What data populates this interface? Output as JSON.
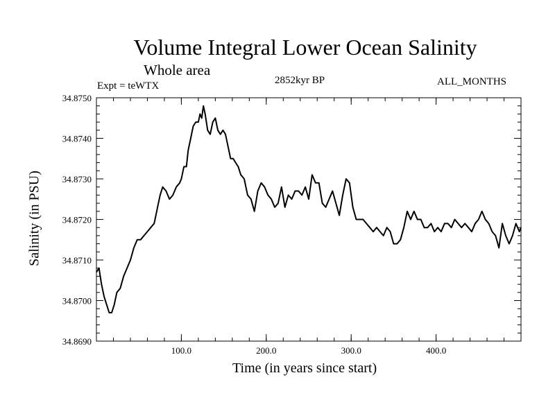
{
  "chart_data": {
    "type": "line",
    "title": "Volume Integral Lower Ocean Salinity",
    "subtitle": "Whole area",
    "left_label": "Expt = teWTX",
    "center_label": "2852kyr BP",
    "right_label": "ALL_MONTHS",
    "xlabel": "Time (in years since start)",
    "ylabel": "Salinity (in PSU)",
    "xlim": [
      0,
      500
    ],
    "ylim": [
      34.869,
      34.875
    ],
    "xticks": [
      100,
      200,
      300,
      400
    ],
    "xtick_labels": [
      "100.0",
      "200.0",
      "300.0",
      "400.0"
    ],
    "yticks": [
      34.869,
      34.87,
      34.871,
      34.872,
      34.873,
      34.874,
      34.875
    ],
    "ytick_labels": [
      "34.8690",
      "34.8700",
      "34.8710",
      "34.8720",
      "34.8730",
      "34.8740",
      "34.8750"
    ],
    "series": [
      {
        "name": "salinity",
        "color": "#000000",
        "x": [
          0,
          3,
          6,
          9,
          12,
          15,
          18,
          21,
          24,
          28,
          32,
          36,
          40,
          44,
          48,
          52,
          56,
          60,
          64,
          68,
          70,
          72,
          75,
          78,
          82,
          86,
          90,
          94,
          98,
          100,
          103,
          106,
          108,
          111,
          114,
          117,
          120,
          122,
          124,
          126,
          128,
          131,
          134,
          137,
          140,
          143,
          146,
          149,
          152,
          155,
          158,
          161,
          164,
          167,
          170,
          174,
          178,
          182,
          186,
          190,
          194,
          198,
          202,
          206,
          210,
          214,
          218,
          222,
          226,
          230,
          234,
          238,
          242,
          246,
          250,
          254,
          258,
          262,
          266,
          270,
          274,
          278,
          282,
          286,
          290,
          294,
          298,
          302,
          306,
          310,
          314,
          318,
          322,
          326,
          330,
          334,
          338,
          342,
          346,
          350,
          354,
          358,
          362,
          366,
          370,
          374,
          378,
          382,
          386,
          390,
          394,
          398,
          402,
          406,
          410,
          414,
          418,
          422,
          426,
          430,
          434,
          438,
          442,
          446,
          450,
          454,
          458,
          462,
          466,
          470,
          474,
          478,
          482,
          486,
          490,
          494,
          498,
          500
        ],
        "y": [
          34.8707,
          34.8708,
          34.8704,
          34.8701,
          34.8699,
          34.8697,
          34.8697,
          34.8699,
          34.8702,
          34.8703,
          34.8706,
          34.8708,
          34.871,
          34.8713,
          34.8715,
          34.8715,
          34.8716,
          34.8717,
          34.8718,
          34.8719,
          34.8721,
          34.8723,
          34.8726,
          34.8728,
          34.8727,
          34.8725,
          34.8726,
          34.8728,
          34.8729,
          34.873,
          34.8733,
          34.8733,
          34.8737,
          34.874,
          34.8743,
          34.8744,
          34.8744,
          34.8746,
          34.8745,
          34.8748,
          34.8746,
          34.8742,
          34.8741,
          34.8744,
          34.8745,
          34.8742,
          34.8741,
          34.8742,
          34.8741,
          34.8738,
          34.8735,
          34.8735,
          34.8734,
          34.8733,
          34.8731,
          34.873,
          34.8726,
          34.8725,
          34.8722,
          34.8727,
          34.8729,
          34.8728,
          34.8726,
          34.8725,
          34.8723,
          34.8724,
          34.8728,
          34.8723,
          34.8726,
          34.8725,
          34.8727,
          34.8727,
          34.8726,
          34.8728,
          34.8725,
          34.8731,
          34.8729,
          34.8729,
          34.8724,
          34.8723,
          34.8725,
          34.8727,
          34.8724,
          34.8721,
          34.8726,
          34.873,
          34.8729,
          34.8723,
          34.872,
          34.872,
          34.872,
          34.8719,
          34.8718,
          34.8717,
          34.8718,
          34.8717,
          34.8716,
          34.8718,
          34.8717,
          34.8714,
          34.8714,
          34.8715,
          34.8718,
          34.8722,
          34.872,
          34.8722,
          34.872,
          34.872,
          34.8718,
          34.8718,
          34.8719,
          34.8717,
          34.8718,
          34.8717,
          34.8719,
          34.8719,
          34.8718,
          34.872,
          34.8719,
          34.8718,
          34.8719,
          34.8718,
          34.8717,
          34.8719,
          34.872,
          34.8722,
          34.872,
          34.8719,
          34.8717,
          34.8716,
          34.8713,
          34.8719,
          34.8716,
          34.8714,
          34.8716,
          34.8719,
          34.8717,
          34.8718
        ]
      }
    ]
  }
}
